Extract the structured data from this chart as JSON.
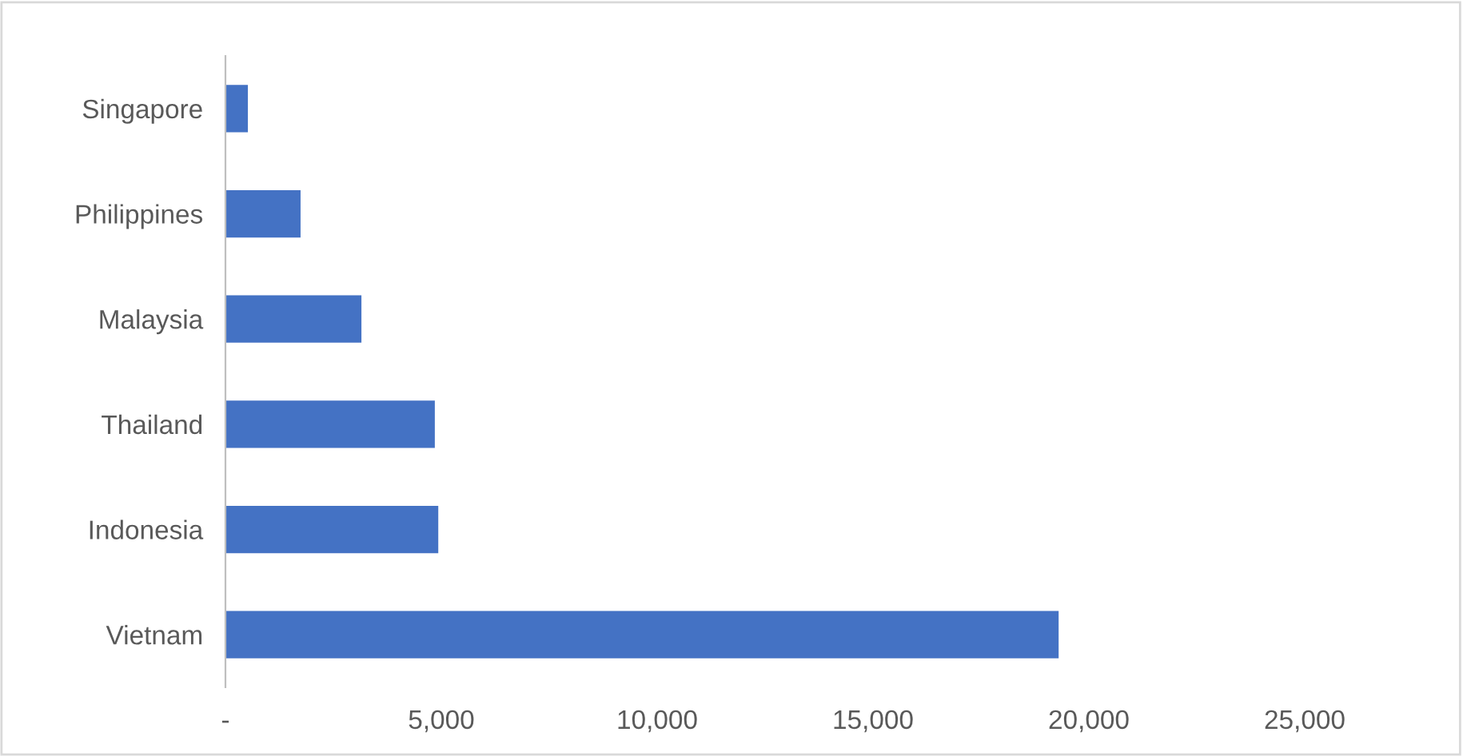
{
  "chart_data": {
    "type": "bar",
    "orientation": "horizontal",
    "categories": [
      "Singapore",
      "Philippines",
      "Malaysia",
      "Thailand",
      "Indonesia",
      "Vietnam"
    ],
    "values": [
      520,
      1740,
      3150,
      4850,
      4930,
      19300
    ],
    "color": "#4472c4",
    "xlim": [
      0,
      25000
    ],
    "xticks": [
      {
        "value": 0,
        "label": "-"
      },
      {
        "value": 5000,
        "label": "5,000"
      },
      {
        "value": 10000,
        "label": "10,000"
      },
      {
        "value": 15000,
        "label": "15,000"
      },
      {
        "value": 20000,
        "label": "20,000"
      },
      {
        "value": 25000,
        "label": "25,000"
      }
    ],
    "grid": false
  }
}
